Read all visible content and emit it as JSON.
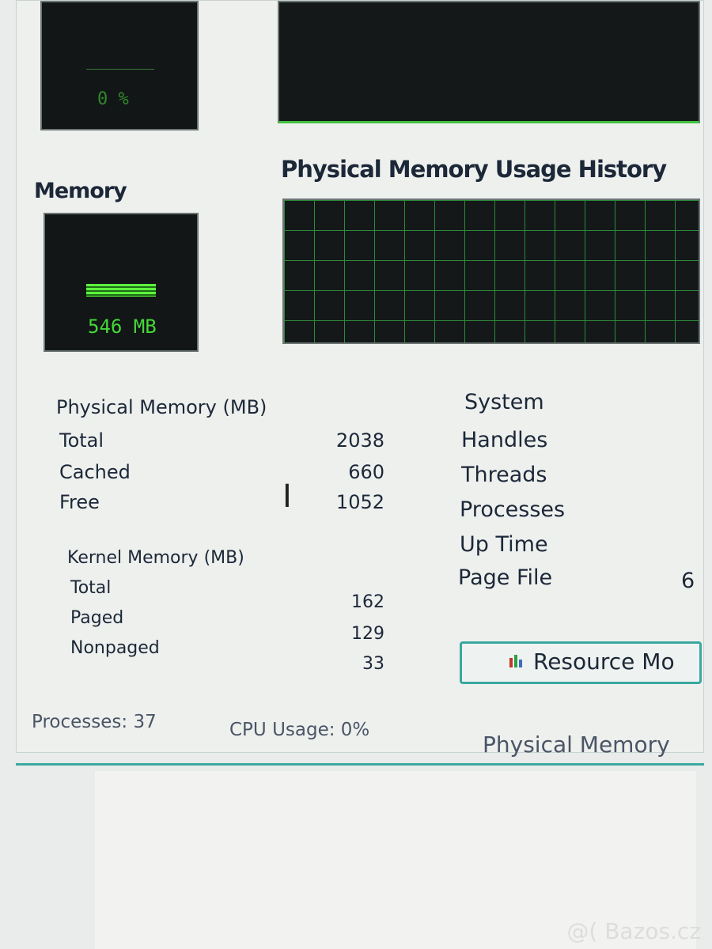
{
  "cpu": {
    "meter_value": "0 %"
  },
  "memory": {
    "label": "Memory",
    "meter_value": "546 MB",
    "history_title": "Physical Memory Usage History"
  },
  "physical_memory": {
    "header": "Physical Memory (MB)",
    "rows": [
      {
        "label": "Total",
        "value": "2038"
      },
      {
        "label": "Cached",
        "value": "660"
      },
      {
        "label": "Free",
        "value": "1052"
      }
    ]
  },
  "kernel_memory": {
    "header": "Kernel Memory (MB)",
    "rows": [
      {
        "label": "Total",
        "value": "162"
      },
      {
        "label": "Paged",
        "value": "129"
      },
      {
        "label": "Nonpaged",
        "value": "33"
      }
    ]
  },
  "system": {
    "header": "System",
    "rows": [
      {
        "label": "Handles"
      },
      {
        "label": "Threads"
      },
      {
        "label": "Processes"
      },
      {
        "label": "Up Time"
      },
      {
        "label": "Page File",
        "value": "6"
      }
    ]
  },
  "resource_monitor_button": {
    "label": "Resource Mo",
    "icon": "resource-monitor-icon"
  },
  "status_bar": {
    "processes": "Processes: 37",
    "cpu_usage": "CPU Usage: 0%",
    "physical_memory": "Physical Memory"
  },
  "watermark": "@( Bazos.cz",
  "colors": {
    "graph_green": "#46d83a",
    "accent_teal": "#3aa8a0"
  }
}
